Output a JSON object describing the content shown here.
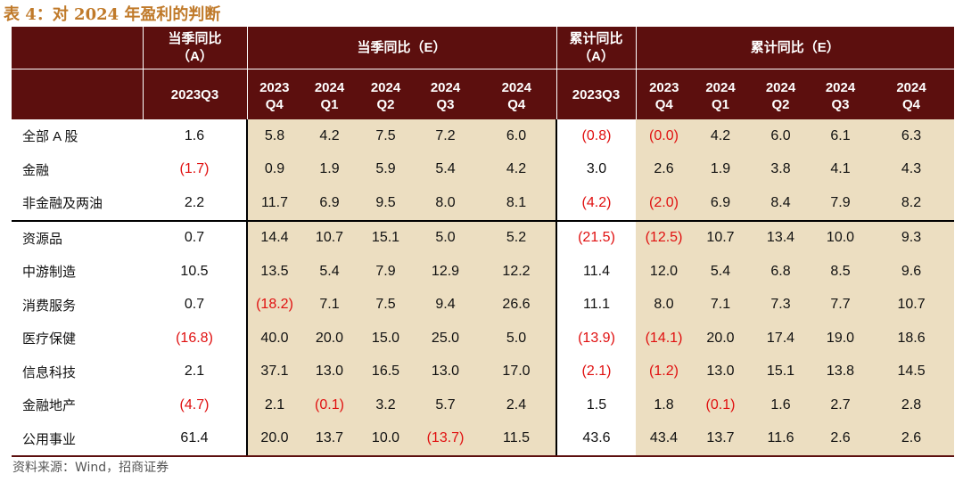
{
  "title": "表 4：对 2024 年盈利的判断",
  "source": "资料来源：Wind，招商证券",
  "header": {
    "group_labels": [
      "当季同比\n（A）",
      "当季同比（E）",
      "累计同比\n（A）",
      "累计同比（E）"
    ],
    "sub_labels": [
      "2023Q3",
      "2023",
      "2024",
      "2024",
      "2024",
      "2024",
      "2023Q3",
      "2023",
      "2024",
      "2024",
      "2024",
      "2024"
    ],
    "quarter_labels": [
      "Q4",
      "Q1",
      "Q2",
      "Q3",
      "Q4",
      "Q4",
      "Q1",
      "Q2",
      "Q3",
      "Q4"
    ]
  },
  "rows": [
    {
      "label": "全部 A 股",
      "values": [
        "1.6",
        "5.8",
        "4.2",
        "7.5",
        "7.2",
        "6.0",
        "(0.8)",
        "(0.0)",
        "4.2",
        "6.0",
        "6.1",
        "6.3"
      ]
    },
    {
      "label": "金融",
      "values": [
        "(1.7)",
        "0.9",
        "1.9",
        "5.9",
        "5.4",
        "4.2",
        "3.0",
        "2.6",
        "1.9",
        "3.8",
        "4.1",
        "4.3"
      ]
    },
    {
      "label": "非金融及两油",
      "values": [
        "2.2",
        "11.7",
        "6.9",
        "9.5",
        "8.0",
        "8.1",
        "(4.2)",
        "(2.0)",
        "6.9",
        "8.4",
        "7.9",
        "8.2"
      ]
    },
    {
      "label": "资源品",
      "values": [
        "0.7",
        "14.4",
        "10.7",
        "15.1",
        "5.0",
        "5.2",
        "(21.5)",
        "(12.5)",
        "10.7",
        "13.4",
        "10.0",
        "9.3"
      ]
    },
    {
      "label": "中游制造",
      "values": [
        "10.5",
        "13.5",
        "5.4",
        "7.9",
        "12.9",
        "12.2",
        "11.4",
        "12.0",
        "5.4",
        "6.8",
        "8.5",
        "9.6"
      ]
    },
    {
      "label": "消费服务",
      "values": [
        "0.7",
        "(18.2)",
        "7.1",
        "7.5",
        "9.4",
        "26.6",
        "11.1",
        "8.0",
        "7.1",
        "7.3",
        "7.7",
        "10.7"
      ]
    },
    {
      "label": "医疗保健",
      "values": [
        "(16.8)",
        "40.0",
        "20.0",
        "15.0",
        "25.0",
        "5.0",
        "(13.9)",
        "(14.1)",
        "20.0",
        "17.4",
        "19.0",
        "18.6"
      ]
    },
    {
      "label": "信息科技",
      "values": [
        "2.1",
        "37.1",
        "13.0",
        "16.5",
        "13.0",
        "17.0",
        "(2.1)",
        "(1.2)",
        "13.0",
        "15.1",
        "13.8",
        "14.5"
      ]
    },
    {
      "label": "金融地产",
      "values": [
        "(4.7)",
        "2.1",
        "(0.1)",
        "3.2",
        "5.7",
        "2.4",
        "1.5",
        "1.8",
        "(0.1)",
        "1.6",
        "2.7",
        "2.8"
      ]
    },
    {
      "label": "公用事业",
      "values": [
        "61.4",
        "20.0",
        "13.7",
        "10.0",
        "(13.7)",
        "11.5",
        "43.6",
        "43.4",
        "13.7",
        "11.6",
        "2.6",
        "2.6"
      ]
    }
  ],
  "colors": {
    "header_bg": "#5c0f0e",
    "shade": "#ecdec1",
    "negative": "#e01010",
    "title": "#c07a2a"
  }
}
